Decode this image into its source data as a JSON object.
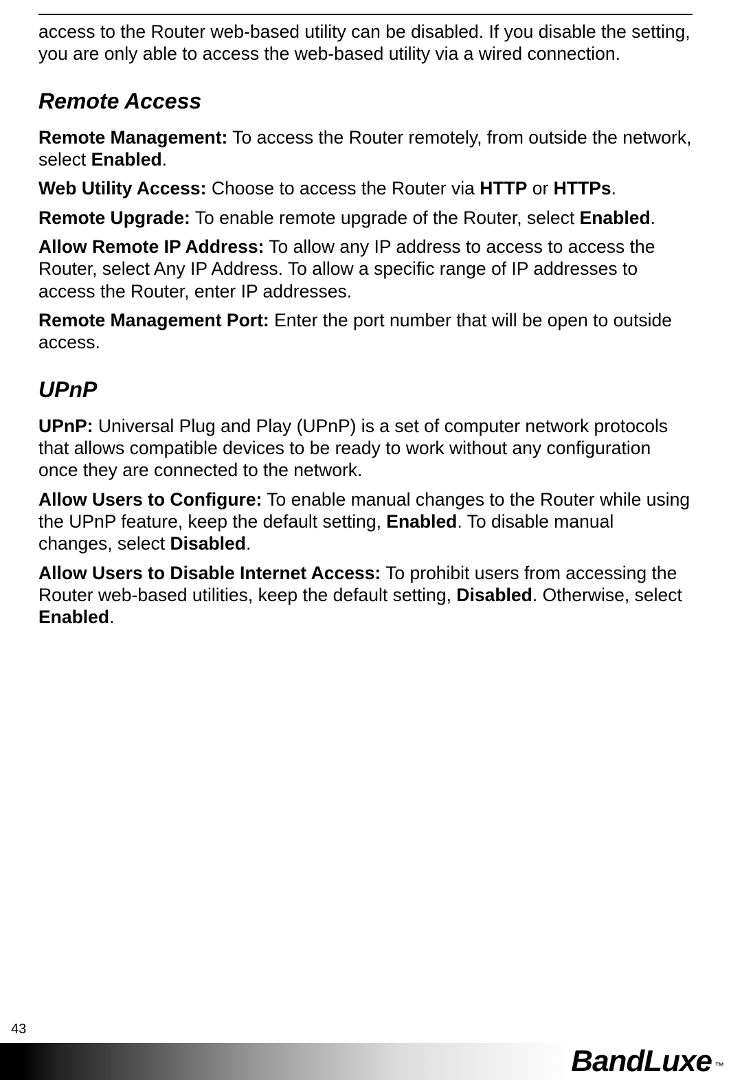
{
  "intro_paragraph": "access to the Router web-based utility can be disabled. If you disable the setting, you are only able to access the web-based utility via a wired connection.",
  "sections": {
    "remote_access": {
      "title": "Remote Access",
      "items": {
        "remote_management_label": "Remote Management:",
        "remote_management_text_1": " To access the Router remotely, from outside the network, select ",
        "remote_management_bold_1": "Enabled",
        "remote_management_text_2": ".",
        "web_utility_label": "Web Utility Access:",
        "web_utility_text_1": " Choose to access the Router via ",
        "web_utility_bold_1": "HTTP",
        "web_utility_text_2": " or ",
        "web_utility_bold_2": "HTTPs",
        "web_utility_text_3": ".",
        "remote_upgrade_label": "Remote Upgrade:",
        "remote_upgrade_text_1": " To enable remote upgrade of the Router, select ",
        "remote_upgrade_bold_1": "Enabled",
        "remote_upgrade_text_2": ".",
        "allow_remote_ip_label": "Allow Remote IP Address:",
        "allow_remote_ip_text": " To allow any IP address to access to access the Router, select Any IP Address. To allow a specific range of IP addresses to access the Router, enter IP addresses.",
        "remote_mgmt_port_label": "Remote Management Port:",
        "remote_mgmt_port_text": " Enter the port number that will be open to outside access."
      }
    },
    "upnp": {
      "title": "UPnP",
      "items": {
        "upnp_label": "UPnP:",
        "upnp_text": " Universal Plug and Play (UPnP) is a set of computer network protocols that allows compatible devices to be ready to work without any configuration once they are connected to the network.",
        "allow_configure_label": "Allow Users to Configure:",
        "allow_configure_text_1": " To enable manual changes to the Router while using the UPnP feature, keep the default setting, ",
        "allow_configure_bold_1": "Enabled",
        "allow_configure_text_2": ". To disable manual changes, select ",
        "allow_configure_bold_2": "Disabled",
        "allow_configure_text_3": ".",
        "allow_disable_label": "Allow Users to Disable Internet Access:",
        "allow_disable_text_1": " To prohibit users from accessing the Router web-based utilities, keep the default setting, ",
        "allow_disable_bold_1": "Disabled",
        "allow_disable_text_2": ". Otherwise, select ",
        "allow_disable_bold_2": "Enabled",
        "allow_disable_text_3": "."
      }
    }
  },
  "page_number": "43",
  "logo": {
    "text": "BandLuxe",
    "suffix": "™"
  }
}
